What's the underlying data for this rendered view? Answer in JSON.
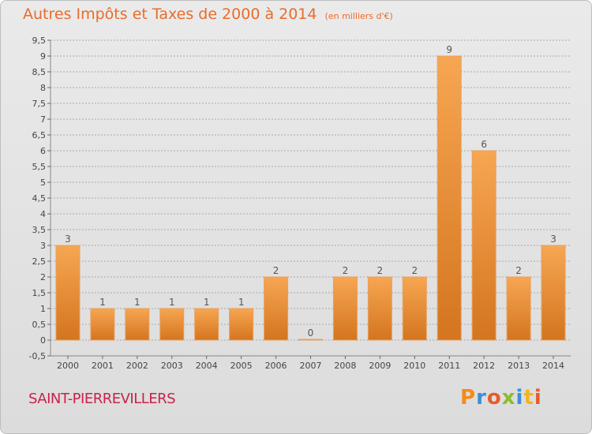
{
  "page": {
    "title": "Autres Impôts et Taxes de 2000 à 2014",
    "subtitle": "(en milliers d'€)",
    "town": "SAINT-PIERREVILLERS",
    "logo": "Proxiti"
  },
  "colors": {
    "title": "#ea6c2a",
    "town": "#c8234a",
    "bar_light": "#f7a652",
    "bar_dark": "#d4751f",
    "grid": "#a8a8a8",
    "logo_letters": [
      "#f28c1b",
      "#3a8fd8",
      "#e85b2a",
      "#8bbd2c",
      "#3a8fd8",
      "#f2b51b",
      "#e85b2a"
    ]
  },
  "chart_data": {
    "type": "bar",
    "categories": [
      "2000",
      "2001",
      "2002",
      "2003",
      "2004",
      "2005",
      "2006",
      "2007",
      "2008",
      "2009",
      "2010",
      "2011",
      "2012",
      "2013",
      "2014"
    ],
    "values": [
      3,
      1,
      1,
      1,
      1,
      1,
      2,
      0,
      2,
      2,
      2,
      9,
      6,
      2,
      3
    ],
    "data_labels": [
      "3",
      "1",
      "1",
      "1",
      "1",
      "1",
      "2",
      "0",
      "2",
      "2",
      "2",
      "9",
      "6",
      "2",
      "3"
    ],
    "ylim": [
      -0.5,
      9.5
    ],
    "yticks": [
      "-0,5",
      "0",
      "0,5",
      "1",
      "1,5",
      "2",
      "2,5",
      "3",
      "3,5",
      "4",
      "4,5",
      "5",
      "5,5",
      "6",
      "6,5",
      "7",
      "7,5",
      "8",
      "8,5",
      "9",
      "9,5"
    ],
    "ytick_values": [
      -0.5,
      0,
      0.5,
      1,
      1.5,
      2,
      2.5,
      3,
      3.5,
      4,
      4.5,
      5,
      5.5,
      6,
      6.5,
      7,
      7.5,
      8,
      8.5,
      9,
      9.5
    ],
    "grid": true
  }
}
